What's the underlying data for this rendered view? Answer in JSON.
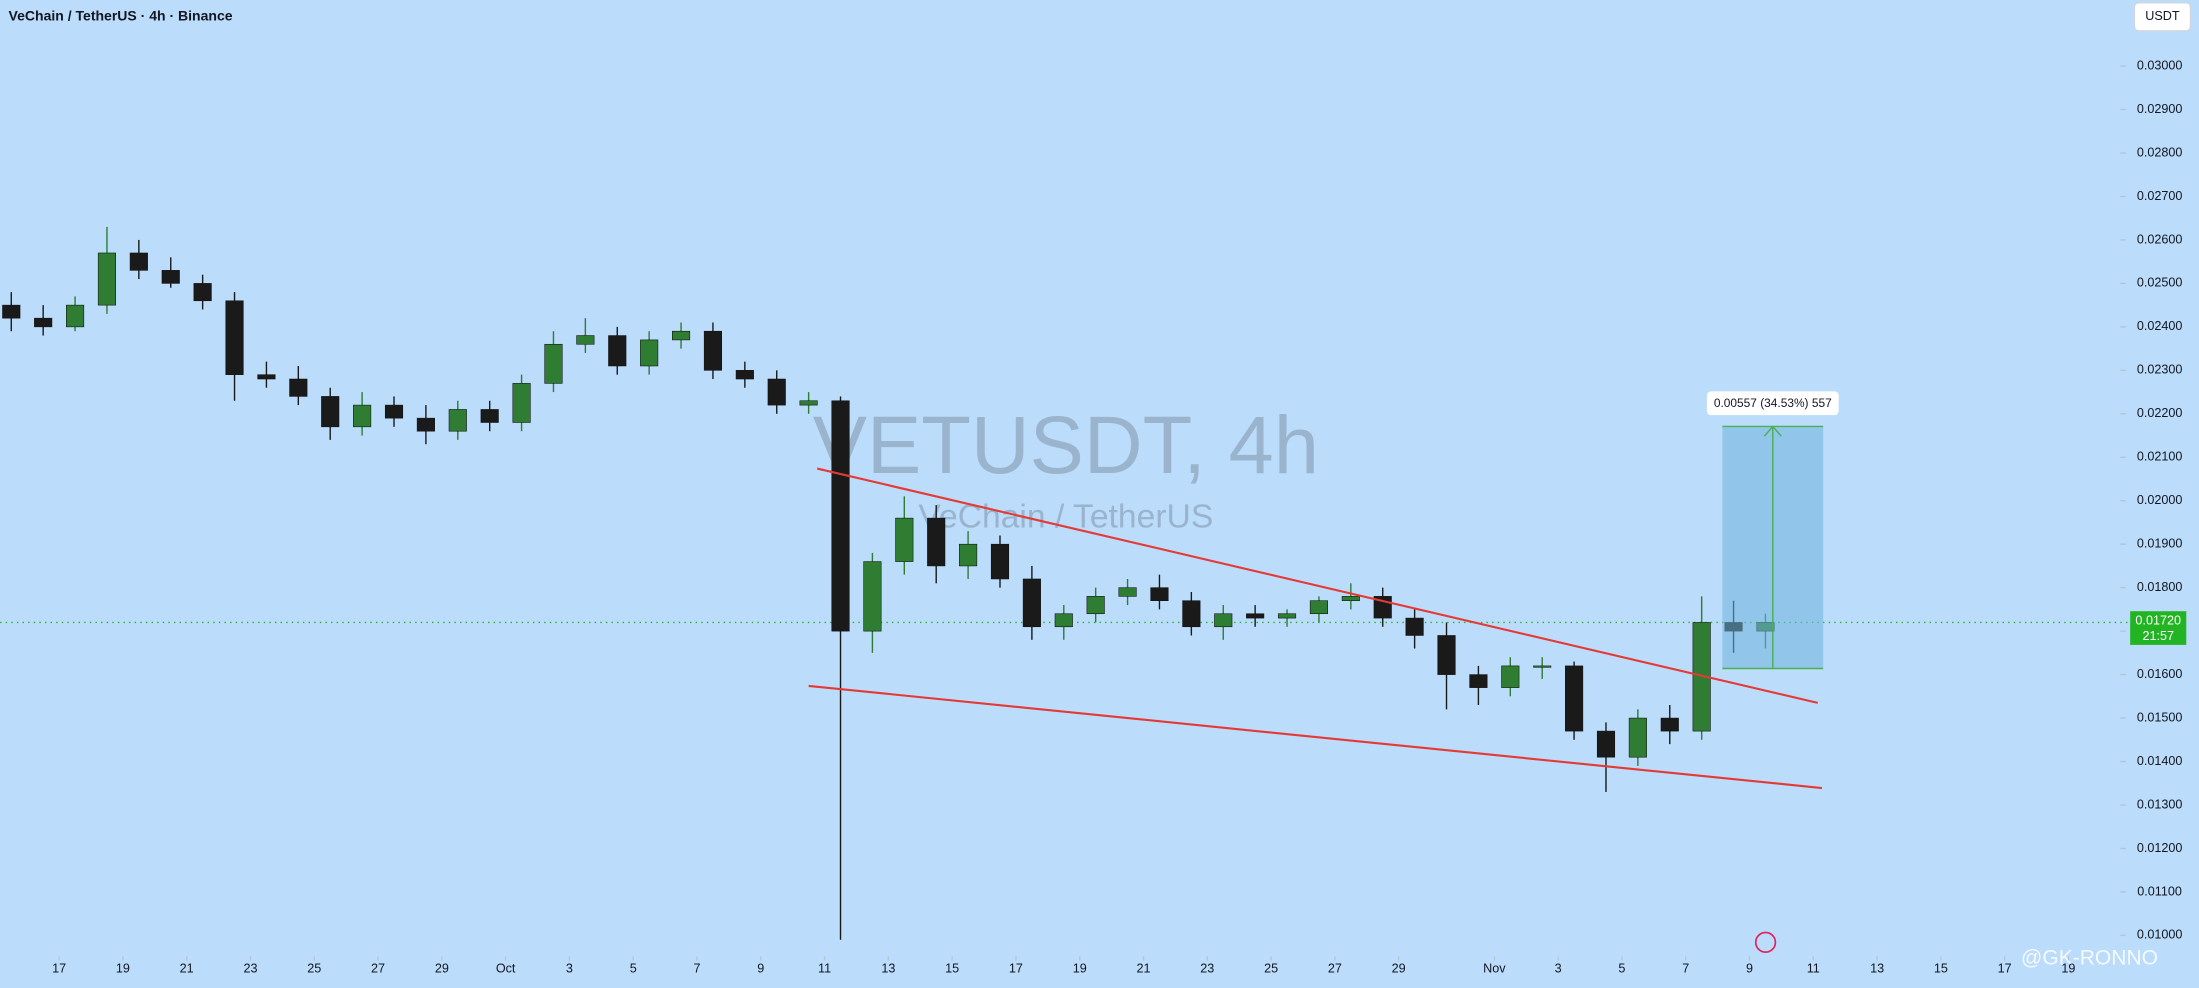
{
  "chart_data": {
    "type": "candlestick",
    "title": "VeChain / TetherUS · 4h · Binance",
    "watermark": "VETUSDT, 4h",
    "watermark_subtitle": "VeChain / TetherUS",
    "currency": "USDT",
    "credit": "@GK-RONNO",
    "up_color": "#2e7d32",
    "down_color": "#1a1a1a",
    "x": [
      15.5,
      16.5,
      17.5,
      18.5,
      19.5,
      20.5,
      21.5,
      22.5,
      23.5,
      24.5,
      25.5,
      26.5,
      27.5,
      28.5,
      29.5,
      30.5,
      31.5,
      32.5,
      33.5,
      34.5,
      35.5,
      36.5,
      37.5,
      38.5,
      39.5,
      40.5,
      41.5,
      42.5,
      43.5,
      44.5,
      45.5,
      46.5,
      47.5,
      48.5,
      49.5,
      50.5,
      51.5,
      52.5,
      53.5,
      54.5,
      55.5,
      56.5,
      57.5,
      58.5,
      59.5,
      60.5,
      61.5,
      62.5,
      63.5,
      64.5,
      65.5,
      66.5,
      67.5,
      68.5,
      69.5,
      70.5
    ],
    "open": [
      0.0245,
      0.0242,
      0.024,
      0.0245,
      0.0257,
      0.0253,
      0.025,
      0.0246,
      0.0229,
      0.0228,
      0.0224,
      0.0217,
      0.0222,
      0.0219,
      0.0216,
      0.0221,
      0.0218,
      0.0227,
      0.0236,
      0.0238,
      0.0231,
      0.0237,
      0.0239,
      0.023,
      0.0228,
      0.0222,
      0.0223,
      0.017,
      0.0186,
      0.0196,
      0.0185,
      0.019,
      0.0182,
      0.0171,
      0.0174,
      0.0178,
      0.018,
      0.0177,
      0.0171,
      0.0174,
      0.0173,
      0.0174,
      0.0177,
      0.0178,
      0.0173,
      0.0169,
      0.016,
      0.0157,
      0.0162,
      0.0162,
      0.0147,
      0.0141,
      0.015,
      0.0147,
      0.0172,
      0.017
    ],
    "high": [
      0.0248,
      0.0245,
      0.0247,
      0.0263,
      0.026,
      0.0256,
      0.0252,
      0.0248,
      0.0232,
      0.0231,
      0.0226,
      0.0225,
      0.0224,
      0.0222,
      0.0223,
      0.0223,
      0.0229,
      0.0239,
      0.0242,
      0.024,
      0.0239,
      0.0241,
      0.0241,
      0.0232,
      0.023,
      0.0225,
      0.0224,
      0.0188,
      0.0201,
      0.0199,
      0.0193,
      0.0192,
      0.0185,
      0.0176,
      0.018,
      0.0182,
      0.0183,
      0.0179,
      0.0176,
      0.0176,
      0.0175,
      0.0178,
      0.0181,
      0.018,
      0.0175,
      0.0172,
      0.0162,
      0.0164,
      0.0164,
      0.0163,
      0.0149,
      0.0152,
      0.0153,
      0.0178,
      0.0177,
      0.0174
    ],
    "low": [
      0.0239,
      0.0238,
      0.0239,
      0.0243,
      0.0251,
      0.0249,
      0.0244,
      0.0223,
      0.0226,
      0.0222,
      0.0214,
      0.0215,
      0.0217,
      0.0213,
      0.0214,
      0.0216,
      0.0216,
      0.0225,
      0.0234,
      0.0229,
      0.0229,
      0.0235,
      0.0228,
      0.0226,
      0.022,
      0.022,
      0.0099,
      0.0165,
      0.0183,
      0.0181,
      0.0182,
      0.018,
      0.0168,
      0.0168,
      0.0172,
      0.0176,
      0.0175,
      0.0169,
      0.0168,
      0.0171,
      0.0171,
      0.0172,
      0.0175,
      0.0171,
      0.0166,
      0.0152,
      0.0153,
      0.0155,
      0.0159,
      0.0145,
      0.0133,
      0.0139,
      0.0144,
      0.0145,
      0.0165,
      0.0166
    ],
    "close": [
      0.0242,
      0.024,
      0.0245,
      0.0257,
      0.0253,
      0.025,
      0.0246,
      0.0229,
      0.0228,
      0.0224,
      0.0217,
      0.0222,
      0.0219,
      0.0216,
      0.0221,
      0.0218,
      0.0227,
      0.0236,
      0.0238,
      0.0231,
      0.0237,
      0.0239,
      0.023,
      0.0228,
      0.0222,
      0.0223,
      0.017,
      0.0186,
      0.0196,
      0.0185,
      0.019,
      0.0182,
      0.0171,
      0.0174,
      0.0178,
      0.018,
      0.0177,
      0.0171,
      0.0174,
      0.0173,
      0.0174,
      0.0177,
      0.0178,
      0.0173,
      0.0169,
      0.016,
      0.0157,
      0.0162,
      0.0162,
      0.0147,
      0.0141,
      0.015,
      0.0147,
      0.0172,
      0.017,
      0.0172
    ],
    "xlim": [
      15.15,
      81.1
    ],
    "ylim": [
      0.00955,
      0.03152
    ],
    "xticks": [
      {
        "value": 17,
        "label": "17"
      },
      {
        "value": 19,
        "label": "19"
      },
      {
        "value": 21,
        "label": "21"
      },
      {
        "value": 23,
        "label": "23"
      },
      {
        "value": 25,
        "label": "25"
      },
      {
        "value": 27,
        "label": "27"
      },
      {
        "value": 29,
        "label": "29"
      },
      {
        "value": 31,
        "label": "Oct"
      },
      {
        "value": 33,
        "label": "3"
      },
      {
        "value": 35,
        "label": "5"
      },
      {
        "value": 37,
        "label": "7"
      },
      {
        "value": 39,
        "label": "9"
      },
      {
        "value": 41,
        "label": "11"
      },
      {
        "value": 43,
        "label": "13"
      },
      {
        "value": 45,
        "label": "15"
      },
      {
        "value": 47,
        "label": "17"
      },
      {
        "value": 49,
        "label": "19"
      },
      {
        "value": 51,
        "label": "21"
      },
      {
        "value": 53,
        "label": "23"
      },
      {
        "value": 55,
        "label": "25"
      },
      {
        "value": 57,
        "label": "27"
      },
      {
        "value": 59,
        "label": "29"
      },
      {
        "value": 62,
        "label": "Nov"
      },
      {
        "value": 64,
        "label": "3"
      },
      {
        "value": 66,
        "label": "5"
      },
      {
        "value": 68,
        "label": "7"
      },
      {
        "value": 70,
        "label": "9"
      },
      {
        "value": 72,
        "label": "11"
      },
      {
        "value": 74,
        "label": "13"
      },
      {
        "value": 76,
        "label": "15"
      },
      {
        "value": 78,
        "label": "17"
      },
      {
        "value": 80,
        "label": "19"
      }
    ],
    "yticks": [
      {
        "value": 0.01,
        "label": "0.01000"
      },
      {
        "value": 0.011,
        "label": "0.01100"
      },
      {
        "value": 0.012,
        "label": "0.01200"
      },
      {
        "value": 0.013,
        "label": "0.01300"
      },
      {
        "value": 0.014,
        "label": "0.01400"
      },
      {
        "value": 0.015,
        "label": "0.01500"
      },
      {
        "value": 0.016,
        "label": "0.01600"
      },
      {
        "value": 0.017,
        "label": "0.01700"
      },
      {
        "value": 0.018,
        "label": "0.01800"
      },
      {
        "value": 0.019,
        "label": "0.01900"
      },
      {
        "value": 0.02,
        "label": "0.02000"
      },
      {
        "value": 0.021,
        "label": "0.02100"
      },
      {
        "value": 0.022,
        "label": "0.02200"
      },
      {
        "value": 0.023,
        "label": "0.02300"
      },
      {
        "value": 0.024,
        "label": "0.02400"
      },
      {
        "value": 0.025,
        "label": "0.02500"
      },
      {
        "value": 0.026,
        "label": "0.02600"
      },
      {
        "value": 0.027,
        "label": "0.02700"
      },
      {
        "value": 0.028,
        "label": "0.02800"
      },
      {
        "value": 0.029,
        "label": "0.02900"
      },
      {
        "value": 0.03,
        "label": "0.03000"
      }
    ],
    "trendlines": [
      {
        "color": "#e53935",
        "x": [
          40.77,
          72.14
        ],
        "y": [
          0.02074,
          0.01535
        ]
      },
      {
        "color": "#e53935",
        "x": [
          40.5,
          72.27
        ],
        "y": [
          0.01574,
          0.01339
        ]
      }
    ],
    "measure": {
      "x": [
        69.15,
        72.31
      ],
      "from": 0.01614,
      "to": 0.02171,
      "label": "0.00557 (34.53%) 557",
      "color": "#4caf50"
    },
    "last_price": {
      "value": 0.0172,
      "label": "0.01720",
      "time": "21:57",
      "color": "#22b422"
    }
  }
}
